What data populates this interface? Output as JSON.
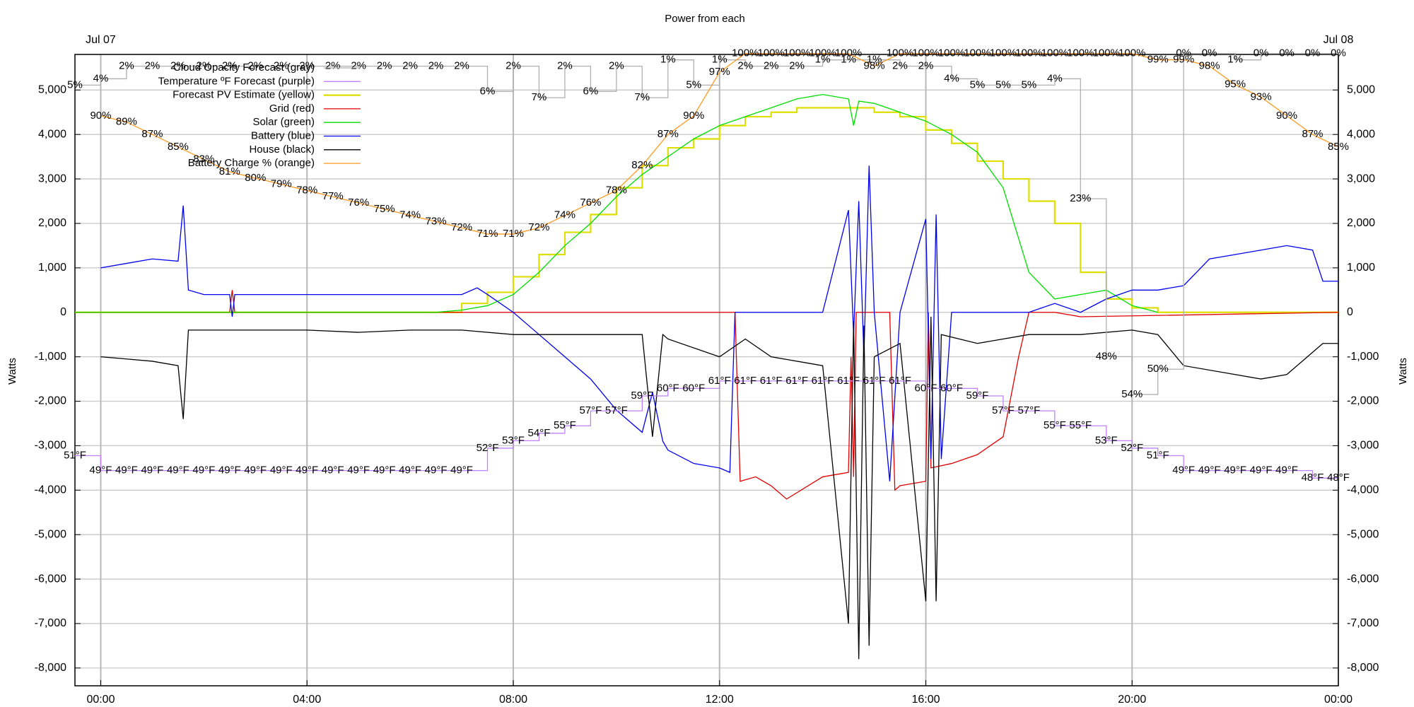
{
  "chart_data": {
    "type": "line",
    "title": "Power from each",
    "y_label": "Watts",
    "y2_label": "Watts",
    "top_labels": [
      {
        "value": 0,
        "label": "Jul 07"
      },
      {
        "value": 24,
        "label": "Jul 08"
      }
    ],
    "xlim": [
      -0.5,
      24
    ],
    "xticks": [
      {
        "value": 0,
        "label": "00:00"
      },
      {
        "value": 4,
        "label": "04:00"
      },
      {
        "value": 8,
        "label": "08:00"
      },
      {
        "value": 12,
        "label": "12:00"
      },
      {
        "value": 16,
        "label": "16:00"
      },
      {
        "value": 20,
        "label": "20:00"
      },
      {
        "value": 24,
        "label": "00:00"
      }
    ],
    "ylim": [
      -8400,
      5800
    ],
    "yticks": [
      {
        "value": -8000,
        "label": "-8,000"
      },
      {
        "value": -7000,
        "label": "-7,000"
      },
      {
        "value": -6000,
        "label": "-6,000"
      },
      {
        "value": -5000,
        "label": "-5,000"
      },
      {
        "value": -4000,
        "label": "-4,000"
      },
      {
        "value": -3000,
        "label": "-3,000"
      },
      {
        "value": -2000,
        "label": "-2,000"
      },
      {
        "value": -1000,
        "label": "-1,000"
      },
      0,
      {
        "value": 1000,
        "label": "1,000"
      },
      {
        "value": 2000,
        "label": "2,000"
      },
      {
        "value": 3000,
        "label": "3,000"
      },
      {
        "value": 4000,
        "label": "4,000"
      },
      {
        "value": 5000,
        "label": "5,000"
      }
    ],
    "grid": true,
    "legend": "top-left",
    "series": [
      {
        "name": "Cloud Opacity Forecast (gray)",
        "color": "#b0b0b0",
        "label_color": "#b0b0b0",
        "step": true,
        "x": [
          -0.5,
          0,
          0.5,
          1,
          1.5,
          2,
          2.5,
          3,
          3.5,
          4,
          4.5,
          5,
          5.5,
          6,
          6.5,
          7,
          7.5,
          8,
          8.5,
          9,
          9.5,
          10,
          10.5,
          11,
          11.5,
          12,
          12.5,
          13,
          13.5,
          14,
          14.5,
          15,
          15.5,
          16,
          16.5,
          17,
          17.5,
          18,
          18.5,
          19,
          19.5,
          20,
          20.5,
          21,
          21.5,
          22,
          22.5,
          23,
          23.5,
          24
        ],
        "values": [
          5,
          4,
          2,
          2,
          2,
          2,
          2,
          2,
          2,
          2,
          2,
          2,
          2,
          2,
          2,
          2,
          6,
          2,
          7,
          2,
          6,
          2,
          7,
          1,
          5,
          1,
          2,
          2,
          2,
          1,
          1,
          1,
          2,
          2,
          4,
          5,
          5,
          5,
          4,
          23,
          48,
          54,
          50,
          0,
          0,
          1,
          0,
          0,
          0,
          0
        ],
        "value_labels": [
          "5%",
          "4%",
          "2%",
          "2%",
          "2%",
          "2%",
          "2%",
          "2%",
          "2%",
          "2%",
          "2%",
          "2%",
          "2%",
          "2%",
          "2%",
          "2%",
          "6%",
          "2%",
          "7%",
          "2%",
          "6%",
          "2%",
          "7%",
          "1%",
          "5%",
          "1%",
          "2%",
          "2%",
          "2%",
          "1%",
          "1%",
          "1%",
          "2%",
          "2%",
          "4%",
          "5%",
          "5%",
          "5%",
          "4%",
          "23%",
          "48%",
          "54%",
          "50%",
          "0%",
          "0%",
          "1%",
          "0%",
          "0%",
          "0%",
          "0%"
        ]
      },
      {
        "name": "Temperature ºF Forecast (purple)",
        "color": "#c080ff",
        "label_color": "#b070e0",
        "step": true,
        "x": [
          -0.5,
          0,
          0.5,
          1,
          1.5,
          2,
          2.5,
          3,
          3.5,
          4,
          4.5,
          5,
          5.5,
          6,
          6.5,
          7,
          7.5,
          8,
          8.5,
          9,
          9.5,
          10,
          10.5,
          11,
          11.5,
          12,
          12.5,
          13,
          13.5,
          14,
          14.5,
          15,
          15.5,
          16,
          16.5,
          17,
          17.5,
          18,
          18.5,
          19,
          19.5,
          20,
          20.5,
          21,
          21.5,
          22,
          22.5,
          23,
          23.5,
          24
        ],
        "values": [
          51,
          49,
          49,
          49,
          49,
          49,
          49,
          49,
          49,
          49,
          49,
          49,
          49,
          49,
          49,
          49,
          52,
          53,
          54,
          55,
          57,
          57,
          59,
          60,
          60,
          61,
          61,
          61,
          61,
          61,
          61,
          61,
          61,
          60,
          60,
          59,
          57,
          57,
          55,
          55,
          53,
          52,
          51,
          49,
          49,
          49,
          49,
          49,
          48,
          48
        ],
        "value_labels": [
          "51°F",
          "49°F",
          "49°F",
          "49°F",
          "49°F",
          "49°F",
          "49°F",
          "49°F",
          "49°F",
          "49°F",
          "49°F",
          "49°F",
          "49°F",
          "49°F",
          "49°F",
          "49°F",
          "52°F",
          "53°F",
          "54°F",
          "55°F",
          "57°F",
          "57°F",
          "59°F",
          "60°F",
          "60°F",
          "61°F",
          "61°F",
          "61°F",
          "61°F",
          "61°F",
          "61°F",
          "61°F",
          "61°F",
          "60°F",
          "60°F",
          "59°F",
          "57°F",
          "57°F",
          "55°F",
          "55°F",
          "53°F",
          "52°F",
          "51°F",
          "49°F",
          "49°F",
          "49°F",
          "49°F",
          "49°F",
          "48°F",
          "48°F"
        ]
      },
      {
        "name": "Forecast PV Estimate (yellow)",
        "color": "#dede00",
        "step": true,
        "x": [
          -0.5,
          7,
          7.5,
          8,
          8.5,
          9,
          9.5,
          10,
          10.5,
          11,
          11.5,
          12,
          12.5,
          13,
          13.5,
          14,
          14.5,
          15,
          15.5,
          16,
          16.5,
          17,
          17.5,
          18,
          18.5,
          19,
          19.5,
          20,
          20.5,
          24
        ],
        "values": [
          0,
          200,
          450,
          800,
          1300,
          1800,
          2200,
          2800,
          3300,
          3700,
          3900,
          4200,
          4400,
          4500,
          4600,
          4600,
          4600,
          4500,
          4400,
          4100,
          3800,
          3400,
          3000,
          2500,
          2000,
          900,
          300,
          100,
          0,
          0
        ]
      },
      {
        "name": "Grid (red)",
        "color": "#e00000",
        "x": [
          -0.5,
          2.5,
          2.55,
          2.6,
          12.3,
          12.4,
          12.7,
          13,
          13.3,
          14,
          14.5,
          14.55,
          14.6,
          14.65,
          14.7,
          15.3,
          15.4,
          15.5,
          16,
          16.05,
          16.1,
          16.5,
          17,
          17.5,
          17.8,
          18,
          18.5,
          19,
          24
        ],
        "values": [
          0,
          0,
          500,
          0,
          0,
          -3800,
          -3700,
          -3900,
          -4200,
          -3700,
          -3600,
          -1000,
          -3700,
          0,
          0,
          0,
          -4000,
          -3900,
          -3800,
          0,
          -3500,
          -3400,
          -3200,
          -2800,
          -1000,
          0,
          0,
          -100,
          0
        ]
      },
      {
        "name": "Solar (green)",
        "color": "#00dd00",
        "x": [
          -0.5,
          6.5,
          7,
          7.5,
          8,
          8.5,
          9,
          9.5,
          10,
          10.5,
          11,
          11.5,
          12,
          12.5,
          13,
          13.5,
          14,
          14.5,
          14.6,
          14.7,
          15,
          15.5,
          16,
          16.5,
          17,
          17.5,
          18,
          18.5,
          19,
          19.5,
          20,
          20.5
        ],
        "values": [
          0,
          0,
          50,
          150,
          400,
          900,
          1500,
          2000,
          2600,
          3100,
          3500,
          3900,
          4200,
          4400,
          4600,
          4800,
          4900,
          4800,
          4200,
          4750,
          4700,
          4500,
          4300,
          4000,
          3600,
          2800,
          900,
          300,
          400,
          500,
          150,
          0
        ]
      },
      {
        "name": "Battery (blue)",
        "color": "#0000ee",
        "x": [
          0,
          0.5,
          1,
          1.5,
          1.6,
          1.7,
          2,
          2.5,
          2.55,
          2.6,
          3,
          4,
          5,
          6,
          7,
          7.3,
          7.5,
          8,
          8.5,
          9,
          9.5,
          10,
          10.5,
          10.7,
          10.9,
          11,
          11.5,
          12,
          12.2,
          12.3,
          13,
          14,
          14.5,
          14.6,
          14.7,
          14.8,
          14.9,
          15,
          15.3,
          15.5,
          16,
          16.1,
          16.2,
          16.3,
          16.5,
          17,
          18,
          18.5,
          19,
          19.5,
          20,
          20.5,
          21,
          21.5,
          22,
          22.5,
          23,
          23.5,
          23.7,
          24
        ],
        "values": [
          1000,
          1100,
          1200,
          1150,
          2400,
          500,
          400,
          400,
          -100,
          400,
          400,
          400,
          400,
          400,
          400,
          550,
          400,
          0,
          -500,
          -1000,
          -1500,
          -2200,
          -2700,
          -1800,
          -2900,
          -3100,
          -3400,
          -3500,
          -3600,
          0,
          0,
          0,
          2300,
          -500,
          2500,
          -1000,
          3300,
          0,
          -3800,
          0,
          2100,
          -3300,
          2200,
          -3300,
          0,
          0,
          0,
          200,
          0,
          300,
          500,
          500,
          600,
          1200,
          1300,
          1400,
          1500,
          1400,
          700,
          700
        ]
      },
      {
        "name": "House (black)",
        "color": "#000000",
        "x": [
          0,
          0.5,
          1,
          1.5,
          1.6,
          1.7,
          2,
          3,
          4,
          5,
          6,
          7,
          8,
          9,
          10,
          10.5,
          10.7,
          10.9,
          11,
          12,
          12.5,
          13,
          14,
          14.5,
          14.6,
          14.7,
          14.8,
          14.9,
          15,
          15.5,
          16,
          16.1,
          16.2,
          16.3,
          17,
          18,
          19,
          20,
          20.5,
          21,
          22,
          22.5,
          23,
          23.7,
          24
        ],
        "values": [
          -1000,
          -1050,
          -1100,
          -1200,
          -2400,
          -400,
          -400,
          -400,
          -400,
          -450,
          -400,
          -400,
          -500,
          -500,
          -500,
          -500,
          -2800,
          -500,
          -600,
          -1000,
          -600,
          -1000,
          -1200,
          -7000,
          -200,
          -7800,
          -300,
          -7500,
          -1000,
          -700,
          -6500,
          -100,
          -6500,
          -500,
          -700,
          -500,
          -500,
          -400,
          -500,
          -1200,
          -1400,
          -1500,
          -1400,
          -700,
          -700
        ]
      },
      {
        "name": "Battery Charge % (orange)",
        "color": "#ff9a20",
        "label_color": "#8b4a00",
        "x": [
          0,
          0.5,
          1,
          1.5,
          2,
          2.5,
          3,
          3.5,
          4,
          4.5,
          5,
          5.5,
          6,
          6.5,
          7,
          7.5,
          8,
          8.5,
          9,
          9.5,
          10,
          10.5,
          11,
          11.5,
          12,
          12.5,
          13,
          13.5,
          14,
          14.5,
          15,
          15.5,
          16,
          16.5,
          17,
          17.5,
          18,
          18.5,
          19,
          19.5,
          20,
          20.5,
          21,
          21.5,
          22,
          22.5,
          23,
          23.5,
          24
        ],
        "values": [
          90,
          89,
          87,
          85,
          83,
          81,
          80,
          79,
          78,
          77,
          76,
          75,
          74,
          73,
          72,
          71,
          71,
          72,
          74,
          76,
          78,
          82,
          87,
          90,
          97,
          100,
          100,
          100,
          100,
          100,
          98,
          100,
          100,
          100,
          100,
          100,
          100,
          100,
          100,
          100,
          100,
          99,
          99,
          98,
          95,
          93,
          90,
          87,
          85
        ],
        "value_labels": [
          "90%",
          "89%",
          "87%",
          "85%",
          "83%",
          "81%",
          "80%",
          "79%",
          "78%",
          "77%",
          "76%",
          "75%",
          "74%",
          "73%",
          "72%",
          "71%",
          "71%",
          "72%",
          "74%",
          "76%",
          "78%",
          "82%",
          "87%",
          "90%",
          "97%",
          "100%",
          "100%",
          "100%",
          "100%",
          "100%",
          "98%",
          "100%",
          "100%",
          "100%",
          "100%",
          "100%",
          "100%",
          "100%",
          "100%",
          "100%",
          "100%",
          "99%",
          "99%",
          "98%",
          "95%",
          "93%",
          "90%",
          "87%",
          "85%"
        ]
      }
    ]
  }
}
